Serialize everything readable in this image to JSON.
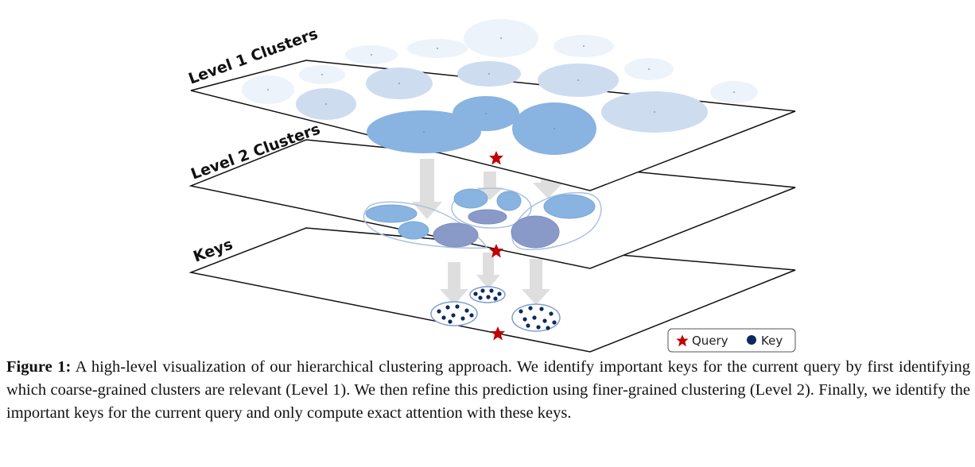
{
  "layers": {
    "level1_label": "Level 1 Clusters",
    "level2_label": "Level 2 Clusters",
    "keys_label": "Keys"
  },
  "legend": {
    "query_label": "Query",
    "key_label": "Key"
  },
  "colors": {
    "query_star": "#c00000",
    "key_dot": "#0d2a5e",
    "cluster_dark": "#8a9ac8",
    "cluster_mid": "#89b3e0",
    "cluster_light": "#eef3fa",
    "arrow": "#dedede"
  },
  "caption": {
    "label": "Figure 1:",
    "text": "A high-level visualization of our hierarchical clustering approach. We identify important keys for the current query by first identifying which coarse-grained clusters are relevant (Level 1). We then refine this prediction using finer-grained clustering (Level 2). Finally, we identify the important keys for the current query and only compute exact attention with these keys."
  }
}
